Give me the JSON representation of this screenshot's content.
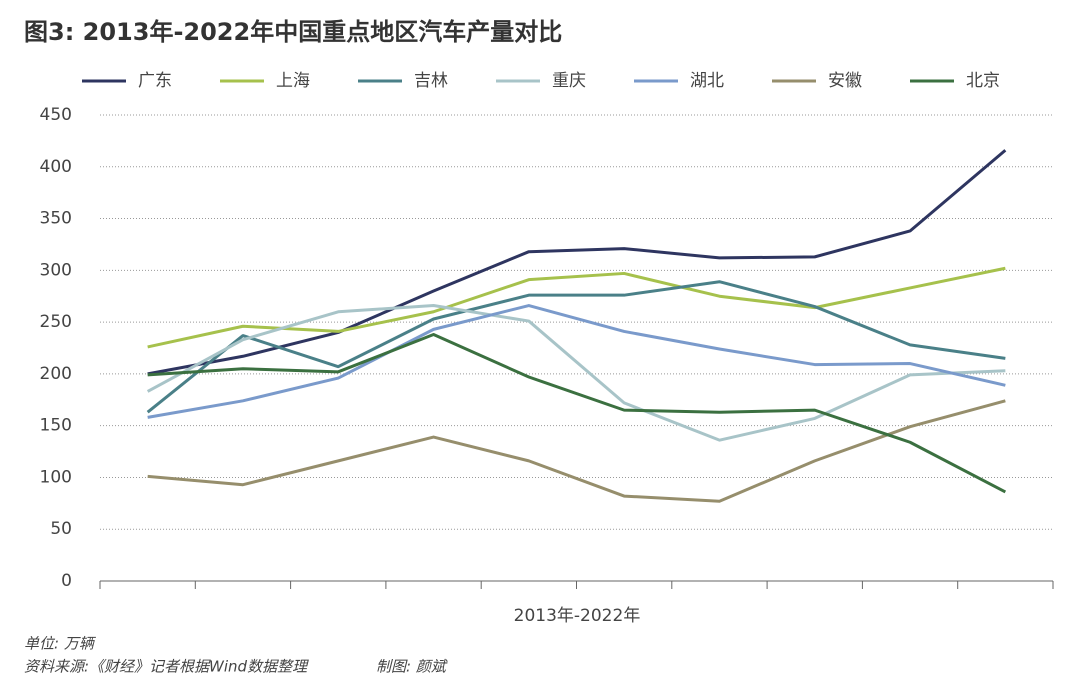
{
  "chart_data": {
    "type": "line",
    "title": "图3: 2013年-2022年中国重点地区汽车产量对比",
    "x_label": "2013年-2022年",
    "categories": [
      null,
      null,
      null,
      null,
      null,
      null,
      null,
      null,
      null,
      null
    ],
    "series": [
      {
        "name": "广东",
        "color": "#2e3560",
        "values": [
          200,
          217,
          240,
          280,
          318,
          321,
          312,
          313,
          338,
          416
        ]
      },
      {
        "name": "上海",
        "color": "#a6c14c",
        "values": [
          226,
          246,
          241,
          260,
          291,
          297,
          275,
          264,
          283,
          302
        ]
      },
      {
        "name": "吉林",
        "color": "#4a8088",
        "values": [
          163,
          237,
          207,
          253,
          276,
          276,
          289,
          265,
          228,
          215
        ]
      },
      {
        "name": "重庆",
        "color": "#a8c4c8",
        "values": [
          183,
          233,
          260,
          266,
          251,
          172,
          136,
          157,
          199,
          203
        ]
      },
      {
        "name": "湖北",
        "color": "#7a9acb",
        "values": [
          158,
          174,
          196,
          243,
          266,
          241,
          224,
          209,
          210,
          189
        ]
      },
      {
        "name": "安徽",
        "color": "#968e6c",
        "values": [
          101,
          93,
          116,
          139,
          116,
          82,
          77,
          116,
          149,
          174
        ]
      },
      {
        "name": "北京",
        "color": "#3b7040",
        "values": [
          199,
          205,
          202,
          238,
          197,
          165,
          163,
          165,
          134,
          86
        ]
      }
    ],
    "ylim": [
      0,
      450
    ],
    "yticks": [
      0,
      50,
      100,
      150,
      200,
      250,
      300,
      350,
      400,
      450
    ],
    "grid": true,
    "legend": "top",
    "notes": [
      "单位: 万辆",
      "资料来源:《财经》记者根据Wind数据整理",
      "制图: 颜斌"
    ]
  }
}
